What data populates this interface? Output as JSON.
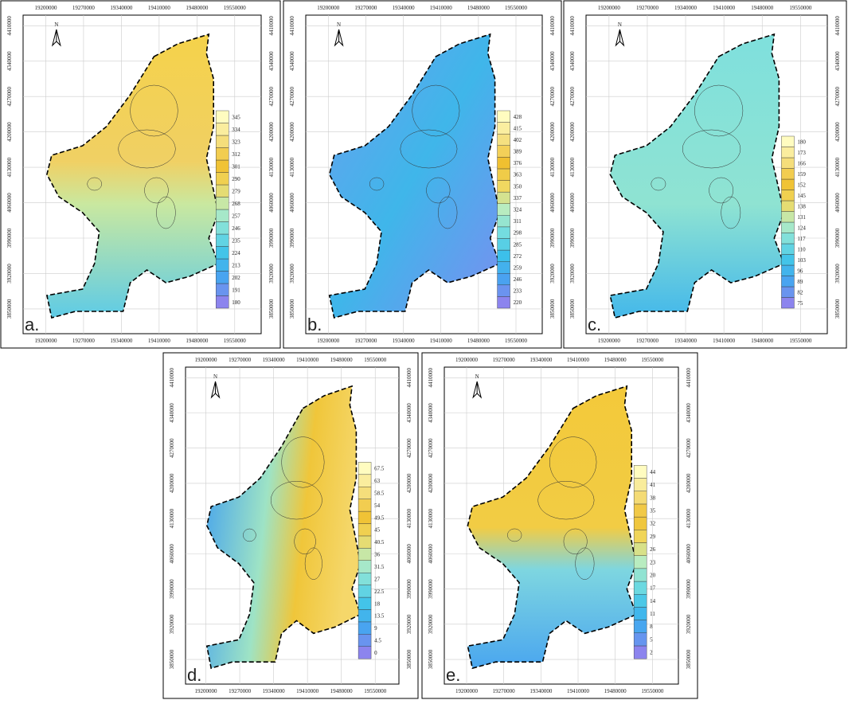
{
  "north_label": "N",
  "xticks": [
    19200000,
    19270000,
    19340000,
    19410000,
    19480000,
    19550000
  ],
  "yticks": [
    4410000,
    4340000,
    4270000,
    4200000,
    4130000,
    4060000,
    3990000,
    3920000,
    3850000
  ],
  "panels": [
    {
      "label": "a.",
      "legend": [
        180,
        191,
        202,
        213,
        224,
        235,
        246,
        257,
        268,
        279,
        290,
        301,
        312,
        323,
        334,
        345
      ]
    },
    {
      "label": "b.",
      "legend": [
        220,
        233,
        246,
        259,
        272,
        285,
        298,
        311,
        324,
        337,
        350,
        363,
        376,
        389,
        402,
        415,
        428
      ]
    },
    {
      "label": "c.",
      "legend": [
        75,
        82,
        89,
        96,
        103,
        110,
        117,
        124,
        131,
        138,
        145,
        152,
        159,
        166,
        173,
        180
      ]
    },
    {
      "label": "d.",
      "legend": [
        0,
        4.5,
        9,
        13.5,
        18,
        22.5,
        27,
        31.5,
        36,
        40.5,
        45,
        49.5,
        54,
        58.5,
        63,
        67.5
      ]
    },
    {
      "label": "e.",
      "legend": [
        2,
        5,
        8,
        11,
        14,
        17,
        20,
        23,
        26,
        29,
        32,
        35,
        38,
        41,
        44
      ]
    }
  ]
}
